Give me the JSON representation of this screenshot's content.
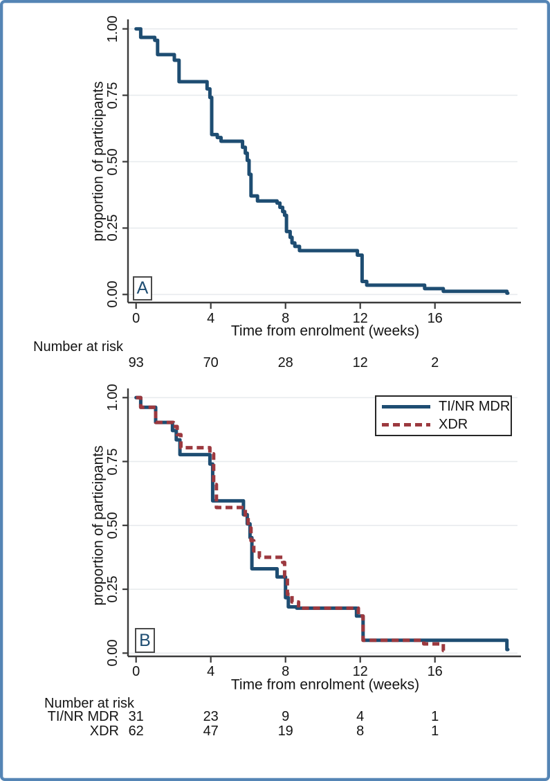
{
  "colors": {
    "frame_border": "#5585b5",
    "navy": "#1e4d72",
    "maroon": "#9c393f",
    "grid": "#e8ebee",
    "axis": "#3b3b3b",
    "text": "#141414"
  },
  "chart_data": [
    {
      "type": "line",
      "subtype": "kaplan_meier_step",
      "panel_label": "A",
      "title": "",
      "xlabel": "Time from enrolment (weeks)",
      "ylabel": "proportion of participants",
      "xlim": [
        0,
        20.5
      ],
      "ylim": [
        0,
        1
      ],
      "xticks": [
        0,
        4,
        8,
        12,
        16
      ],
      "yticks": [
        0,
        0.25,
        0.5,
        0.75,
        1
      ],
      "ytick_labels": [
        "0.00",
        "0.25",
        "0.50",
        "0.75",
        "1.00"
      ],
      "grid": "horizontal",
      "legend": null,
      "series": [
        {
          "name": "",
          "color": "#1e4d72",
          "style": "solid",
          "end": 19.9,
          "steps": [
            [
              0,
              1.0
            ],
            [
              0.25,
              0.968
            ],
            [
              1.0,
              0.957
            ],
            [
              1.15,
              0.903
            ],
            [
              2.05,
              0.882
            ],
            [
              2.3,
              0.801
            ],
            [
              3.8,
              0.774
            ],
            [
              3.95,
              0.742
            ],
            [
              4.05,
              0.602
            ],
            [
              4.35,
              0.591
            ],
            [
              4.55,
              0.577
            ],
            [
              5.7,
              0.554
            ],
            [
              5.85,
              0.532
            ],
            [
              5.95,
              0.505
            ],
            [
              6.05,
              0.452
            ],
            [
              6.15,
              0.371
            ],
            [
              6.5,
              0.352
            ],
            [
              7.55,
              0.344
            ],
            [
              7.7,
              0.328
            ],
            [
              7.85,
              0.312
            ],
            [
              7.95,
              0.298
            ],
            [
              8.05,
              0.237
            ],
            [
              8.25,
              0.215
            ],
            [
              8.35,
              0.194
            ],
            [
              8.5,
              0.181
            ],
            [
              8.75,
              0.165
            ],
            [
              11.85,
              0.148
            ],
            [
              12.1,
              0.049
            ],
            [
              12.35,
              0.035
            ],
            [
              15.45,
              0.022
            ],
            [
              16.45,
              0.012
            ],
            [
              19.85,
              0.005
            ]
          ]
        }
      ],
      "at_risk": {
        "header": "Number at risk",
        "times": [
          0,
          4,
          8,
          12,
          16
        ],
        "rows": [
          {
            "label": "",
            "values": [
              "93",
              "70",
              "28",
              "12",
              "2"
            ]
          }
        ]
      }
    },
    {
      "type": "line",
      "subtype": "kaplan_meier_step",
      "panel_label": "B",
      "title": "",
      "xlabel": "Time from enrolment (weeks)",
      "ylabel": "proportion of participants",
      "xlim": [
        0,
        20.5
      ],
      "ylim": [
        0,
        1
      ],
      "xticks": [
        0,
        4,
        8,
        12,
        16
      ],
      "yticks": [
        0,
        0.25,
        0.5,
        0.75,
        1
      ],
      "ytick_labels": [
        "0.00",
        "0.25",
        "0.50",
        "0.75",
        "1.00"
      ],
      "grid": "horizontal",
      "legend": {
        "position": "top-right",
        "entries": [
          {
            "label": "TI/NR MDR",
            "color": "#1e4d72",
            "style": "solid"
          },
          {
            "label": "XDR",
            "color": "#9c393f",
            "style": "dashed"
          }
        ]
      },
      "series": [
        {
          "name": "TI/NR MDR",
          "color": "#1e4d72",
          "style": "solid",
          "end": 19.9,
          "steps": [
            [
              0,
              1.0
            ],
            [
              0.25,
              0.962
            ],
            [
              1.05,
              0.903
            ],
            [
              1.95,
              0.871
            ],
            [
              2.15,
              0.835
            ],
            [
              2.35,
              0.777
            ],
            [
              3.95,
              0.74
            ],
            [
              4.1,
              0.596
            ],
            [
              5.75,
              0.542
            ],
            [
              5.95,
              0.506
            ],
            [
              6.1,
              0.452
            ],
            [
              6.2,
              0.33
            ],
            [
              7.55,
              0.298
            ],
            [
              8.0,
              0.217
            ],
            [
              8.15,
              0.181
            ],
            [
              8.6,
              0.176
            ],
            [
              11.8,
              0.145
            ],
            [
              12.15,
              0.05
            ],
            [
              19.85,
              0.014
            ]
          ]
        },
        {
          "name": "XDR",
          "color": "#9c393f",
          "style": "dashed",
          "end": 16.55,
          "steps": [
            [
              0,
              1.0
            ],
            [
              0.25,
              0.962
            ],
            [
              1.05,
              0.903
            ],
            [
              2.0,
              0.887
            ],
            [
              2.2,
              0.855
            ],
            [
              2.4,
              0.804
            ],
            [
              3.95,
              0.78
            ],
            [
              4.15,
              0.66
            ],
            [
              4.3,
              0.57
            ],
            [
              5.85,
              0.53
            ],
            [
              6.0,
              0.49
            ],
            [
              6.15,
              0.44
            ],
            [
              6.3,
              0.4
            ],
            [
              6.6,
              0.375
            ],
            [
              7.85,
              0.355
            ],
            [
              7.95,
              0.3
            ],
            [
              8.1,
              0.23
            ],
            [
              8.35,
              0.2
            ],
            [
              8.7,
              0.176
            ],
            [
              11.9,
              0.145
            ],
            [
              12.15,
              0.05
            ],
            [
              15.4,
              0.036
            ],
            [
              16.45,
              0.01
            ]
          ]
        }
      ],
      "at_risk": {
        "header": "Number at risk",
        "times": [
          0,
          4,
          8,
          12,
          16
        ],
        "rows": [
          {
            "label": "TI/NR MDR",
            "values": [
              "31",
              "23",
              "9",
              "4",
              "1"
            ]
          },
          {
            "label": "XDR",
            "values": [
              "62",
              "47",
              "19",
              "8",
              "1"
            ]
          }
        ]
      }
    }
  ]
}
